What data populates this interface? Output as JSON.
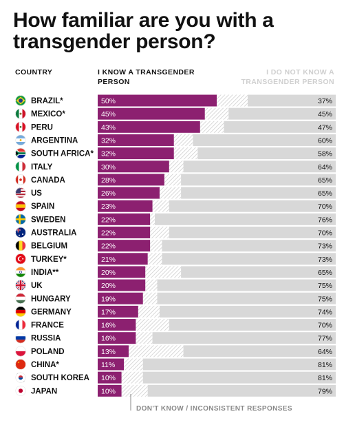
{
  "title": "How familiar are you with a transgender person?",
  "headers": {
    "country": "COUNTRY",
    "know": "I KNOW A TRANSGENDER PERSON",
    "notknow": "I DO NOT KNOW A TRANSGENDER PERSON"
  },
  "footnote": "DON'T KNOW / INCONSISTENT RESPONSES",
  "colors": {
    "know": "#8c2070",
    "notknow": "#d8d8d8",
    "dontknow_hatch": "#cfcfcf"
  },
  "chart_data": {
    "type": "bar",
    "stacked": true,
    "orientation": "horizontal",
    "categories": [
      "BRAZIL*",
      "MEXICO*",
      "PERU",
      "ARGENTINA",
      "SOUTH AFRICA*",
      "ITALY",
      "CANADA",
      "US",
      "SPAIN",
      "SWEDEN",
      "AUSTRALIA",
      "BELGIUM",
      "TURKEY*",
      "INDIA**",
      "UK",
      "HUNGARY",
      "GERMANY",
      "FRANCE",
      "RUSSIA",
      "POLAND",
      "CHINA*",
      "SOUTH KOREA",
      "JAPAN"
    ],
    "flags": [
      "brazil",
      "mexico",
      "peru",
      "argentina",
      "south-africa",
      "italy",
      "canada",
      "us",
      "spain",
      "sweden",
      "australia",
      "belgium",
      "turkey",
      "india",
      "uk",
      "hungary",
      "germany",
      "france",
      "russia",
      "poland",
      "china",
      "south-korea",
      "japan"
    ],
    "series": [
      {
        "name": "I KNOW A TRANSGENDER PERSON",
        "values": [
          50,
          45,
          43,
          32,
          32,
          30,
          28,
          26,
          23,
          22,
          22,
          22,
          21,
          20,
          20,
          19,
          17,
          16,
          16,
          13,
          11,
          10,
          10
        ]
      },
      {
        "name": "I DO NOT KNOW A TRANSGENDER PERSON",
        "values": [
          37,
          45,
          47,
          60,
          58,
          64,
          65,
          65,
          70,
          76,
          70,
          73,
          73,
          65,
          75,
          75,
          74,
          70,
          77,
          64,
          81,
          81,
          79
        ]
      }
    ],
    "value_suffix": "%",
    "xlim": [
      0,
      100
    ]
  }
}
